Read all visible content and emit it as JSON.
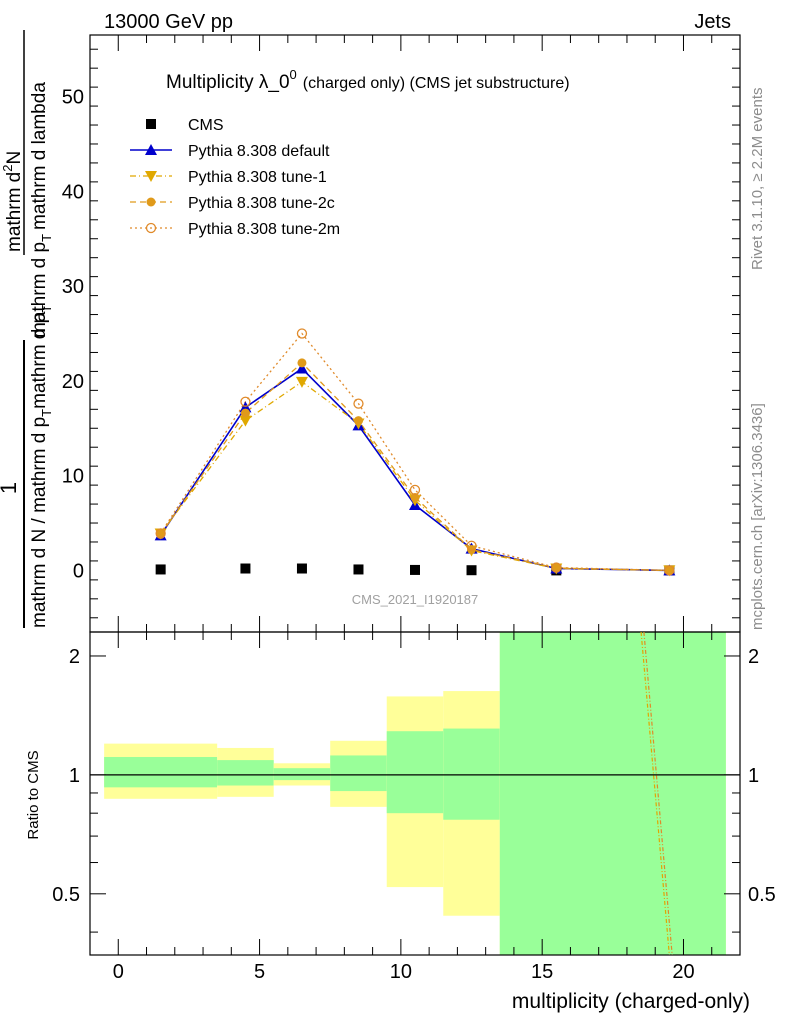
{
  "header": {
    "energy": "13000 GeV pp",
    "category": "Jets"
  },
  "sidebar": {
    "rivet": "Rivet 3.1.10, ≥ 2.2M events",
    "mcplots": "mcplots.cern.ch [arXiv:1306.3436]"
  },
  "chart_data": [
    {
      "type": "line",
      "title": "Multiplicity λ_0",
      "title_sup": "0",
      "title_suffix": "(charged only) (CMS jet substructure)",
      "ylabel_numerator": "1",
      "ylabel_denominator": "mathrm d N / mathrm d p_T mathrm d p_T mathrm d lambda",
      "ylabel_deriv": "mathrm d²N / mathrm d p_T mathrm d lambda",
      "ylabel_parts": {
        "num_main": "mathrm d",
        "num_sup": "2",
        "num_rest": "N",
        "den_a": "mathrm d p",
        "den_sub": "T",
        "den_b": "mathrm d lambda",
        "lower_a": "mathrm d N / mathrm d p",
        "lower_sub": "T",
        "lower_b": "mathrm d p",
        "lower_sub2": "T",
        "lower_c": ""
      },
      "watermark": "CMS_2021_I1920187",
      "xlim": [
        -1,
        22
      ],
      "ylim": [
        -6.5,
        56.5
      ],
      "yticks": [
        0,
        10,
        20,
        30,
        40,
        50
      ],
      "legend_position": "top-left",
      "series": [
        {
          "name": "CMS",
          "color": "#000000",
          "marker": "square",
          "x": [
            1.5,
            4.5,
            6.5,
            8.5,
            10.5,
            12.5,
            15.5,
            19.5
          ],
          "y": [
            0.1,
            0.2,
            0.2,
            0.1,
            0.05,
            0.02,
            0.0,
            0.0
          ]
        },
        {
          "name": "Pythia 8.308 default",
          "color": "#0000cc",
          "marker": "triangle-up",
          "line": "solid",
          "x": [
            1.5,
            4.5,
            6.5,
            8.5,
            10.5,
            12.5,
            15.5,
            19.5
          ],
          "y": [
            3.7,
            17.2,
            21.3,
            15.3,
            6.9,
            2.3,
            0.2,
            0.0
          ]
        },
        {
          "name": "Pythia 8.308 tune-1",
          "color": "#e0a800",
          "marker": "triangle-down",
          "line": "dashdot",
          "x": [
            1.5,
            4.5,
            6.5,
            8.5,
            10.5,
            12.5,
            15.5,
            19.5
          ],
          "y": [
            3.9,
            15.8,
            19.9,
            15.5,
            7.4,
            2.1,
            0.2,
            0.0
          ]
        },
        {
          "name": "Pythia 8.308 tune-2c",
          "color": "#e09a1a",
          "marker": "circle-filled",
          "line": "dashed",
          "x": [
            1.5,
            4.5,
            6.5,
            8.5,
            10.5,
            12.5,
            15.5,
            19.5
          ],
          "y": [
            3.8,
            16.6,
            21.9,
            15.8,
            7.7,
            2.2,
            0.25,
            0.0
          ]
        },
        {
          "name": "Pythia 8.308 tune-2m",
          "color": "#e08a2a",
          "marker": "circle-open",
          "line": "dotted",
          "x": [
            1.5,
            4.5,
            6.5,
            8.5,
            10.5,
            12.5,
            15.5,
            19.5
          ],
          "y": [
            3.9,
            17.8,
            25.0,
            17.6,
            8.5,
            2.6,
            0.3,
            0.0
          ]
        }
      ]
    },
    {
      "type": "area",
      "ylabel": "Ratio to CMS",
      "xlabel": "multiplicity (charged-only)",
      "xlim": [
        -1,
        22
      ],
      "ylim": [
        0.35,
        2.3
      ],
      "yscale": "log",
      "xticks": [
        0,
        5,
        10,
        15,
        20
      ],
      "yticks": [
        0.5,
        1,
        2
      ],
      "ytick_labels": [
        "0.5",
        "1",
        "2"
      ],
      "reference_line": 1,
      "bins": [
        {
          "xlow": -0.5,
          "xhigh": 3.5,
          "stat_low": 0.93,
          "stat_high": 1.11,
          "tot_low": 0.87,
          "tot_high": 1.2
        },
        {
          "xlow": 3.5,
          "xhigh": 5.5,
          "stat_low": 0.94,
          "stat_high": 1.09,
          "tot_low": 0.88,
          "tot_high": 1.17
        },
        {
          "xlow": 5.5,
          "xhigh": 7.5,
          "stat_low": 0.97,
          "stat_high": 1.04,
          "tot_low": 0.94,
          "tot_high": 1.07
        },
        {
          "xlow": 7.5,
          "xhigh": 9.5,
          "stat_low": 0.91,
          "stat_high": 1.12,
          "tot_low": 0.83,
          "tot_high": 1.22
        },
        {
          "xlow": 9.5,
          "xhigh": 11.5,
          "stat_low": 0.8,
          "stat_high": 1.29,
          "tot_low": 0.52,
          "tot_high": 1.58
        },
        {
          "xlow": 11.5,
          "xhigh": 13.5,
          "stat_low": 0.77,
          "stat_high": 1.31,
          "tot_low": 0.44,
          "tot_high": 1.63
        },
        {
          "xlow": 13.5,
          "xhigh": 21.5,
          "stat_low": 0.3,
          "stat_high": 3.0,
          "tot_low": 0.3,
          "tot_high": 3.0
        }
      ],
      "band_colors": {
        "stat": "#99ff99",
        "total": "#ffff99"
      },
      "ratio_series": [
        {
          "name": "Pythia 8.308 tune-1",
          "color": "#e0a800",
          "x": [
            18.5,
            19.5
          ],
          "y": [
            2.3,
            0.35
          ]
        },
        {
          "name": "Pythia 8.308 tune-2m",
          "color": "#e08a2a",
          "x": [
            18.6,
            19.6
          ],
          "y": [
            2.3,
            0.35
          ]
        }
      ]
    }
  ]
}
